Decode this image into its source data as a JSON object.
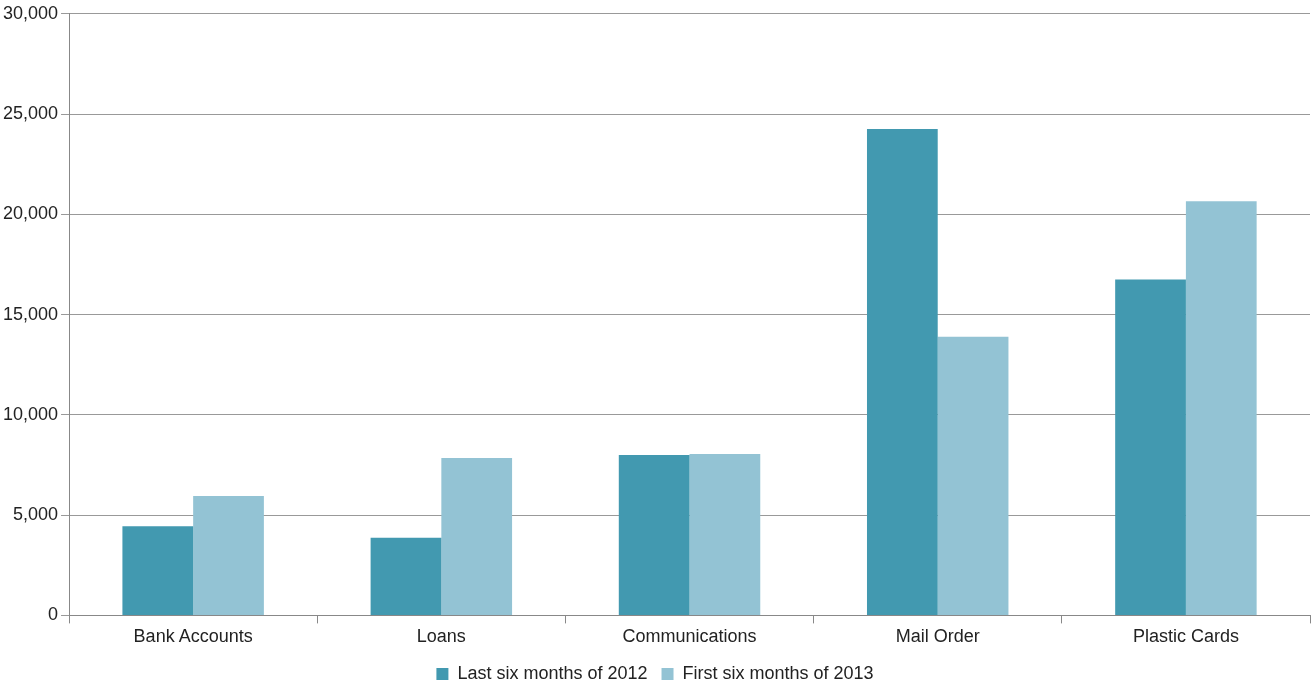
{
  "chart_data": {
    "type": "bar",
    "categories": [
      "Bank Accounts",
      "Loans",
      "Communications",
      "Mail Order",
      "Plastic Cards"
    ],
    "series": [
      {
        "name": "Last six months of 2012",
        "color": "#4299b0",
        "values": [
          4450,
          3870,
          8000,
          24250,
          16750
        ]
      },
      {
        "name": "First six months of 2013",
        "color": "#93c3d4",
        "values": [
          5950,
          7850,
          8050,
          13900,
          20650
        ]
      }
    ],
    "ylim": [
      0,
      30000
    ],
    "yticks": [
      {
        "value": 0,
        "label": "0"
      },
      {
        "value": 5000,
        "label": "5,000"
      },
      {
        "value": 10000,
        "label": "10,000"
      },
      {
        "value": 15000,
        "label": "15,000"
      },
      {
        "value": 20000,
        "label": "20,000"
      },
      {
        "value": 25000,
        "label": "25,000"
      },
      {
        "value": 30000,
        "label": "30,000"
      }
    ],
    "grid": "y",
    "legend": "bottom"
  }
}
